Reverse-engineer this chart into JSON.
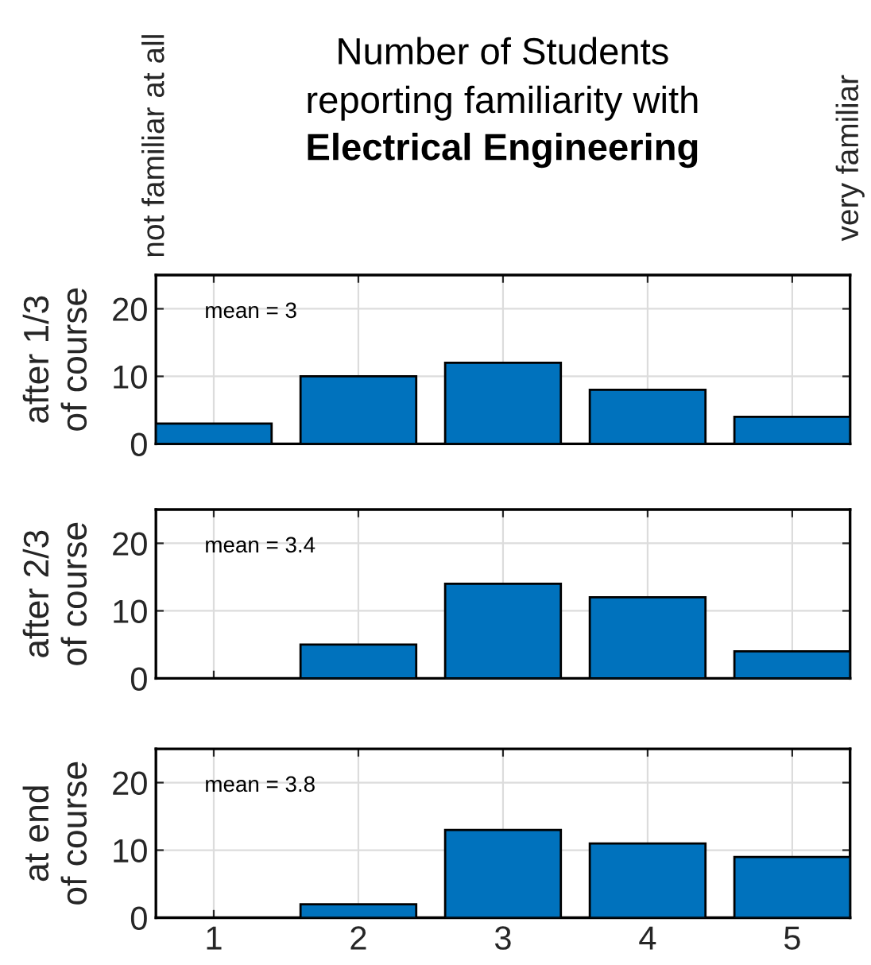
{
  "chart_data": [
    {
      "type": "bar",
      "title": "Number of Students\nreporting familiarity with",
      "subtitle": "Electrical Engineering",
      "ylabel": "after 1/3\nof course",
      "x": [
        1,
        2,
        3,
        4,
        5
      ],
      "values": [
        3,
        10,
        12,
        8,
        4
      ],
      "color": "#0072bd",
      "xlim": [
        0.6,
        5.4
      ],
      "xticks": [
        1,
        2,
        3,
        4,
        5
      ],
      "ylim": [
        0,
        25
      ],
      "yticks": [
        0,
        10,
        20
      ],
      "grid": true,
      "tick_labels": "y",
      "annotations": [
        "mean = 3",
        "not familiar at all",
        "very familiar"
      ]
    },
    {
      "type": "bar",
      "ylabel": "after 2/3\nof course",
      "x": [
        1,
        2,
        3,
        4,
        5
      ],
      "values": [
        0,
        5,
        14,
        12,
        4
      ],
      "color": "#0072bd",
      "xlim": [
        0.6,
        5.4
      ],
      "xticks": [
        1,
        2,
        3,
        4,
        5
      ],
      "ylim": [
        0,
        25
      ],
      "yticks": [
        0,
        10,
        20
      ],
      "grid": true,
      "tick_labels": "y",
      "annotations": [
        "mean = 3.4"
      ]
    },
    {
      "type": "bar",
      "ylabel": "at end\nof course",
      "x": [
        1,
        2,
        3,
        4,
        5
      ],
      "values": [
        0,
        2,
        13,
        11,
        9
      ],
      "color": "#0072bd",
      "xlim": [
        0.6,
        5.4
      ],
      "xticks": [
        1,
        2,
        3,
        4,
        5
      ],
      "ylim": [
        0,
        25
      ],
      "yticks": [
        0,
        10,
        20
      ],
      "grid": true,
      "annotations": [
        "mean = 3.8"
      ]
    }
  ]
}
